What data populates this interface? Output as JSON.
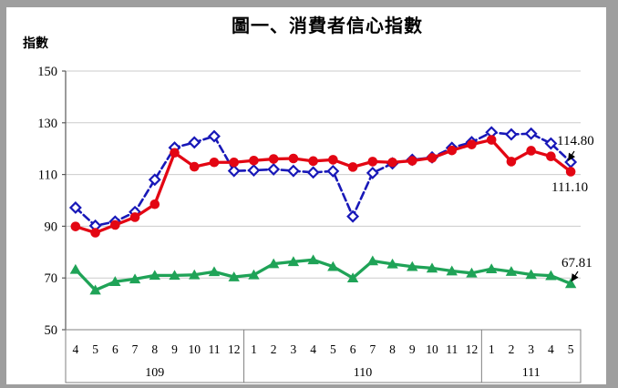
{
  "window": {
    "title": "圖一、消費者信心指數",
    "y_axis_unit": "指數"
  },
  "chart_data": {
    "type": "line",
    "title": "圖一、消費者信心指數",
    "ylabel": "指數",
    "xlabel": "",
    "ylim": [
      50,
      150
    ],
    "yticks": [
      150,
      130,
      110,
      90,
      70,
      50
    ],
    "grid": "horizontal",
    "legend": "none",
    "x_groups": [
      {
        "year": "109",
        "months": [
          "4",
          "5",
          "6",
          "7",
          "8",
          "9",
          "10",
          "11",
          "12"
        ]
      },
      {
        "year": "110",
        "months": [
          "1",
          "2",
          "3",
          "4",
          "5",
          "6",
          "7",
          "8",
          "9",
          "10",
          "11",
          "12"
        ]
      },
      {
        "year": "111",
        "months": [
          "1",
          "2",
          "3",
          "4",
          "5"
        ]
      }
    ],
    "series": [
      {
        "name": "blue-dashed-diamond",
        "color": "#1818b8",
        "line_style": "dashed",
        "marker": "diamond-open",
        "values": [
          97.2,
          90.2,
          91.8,
          95.5,
          108.0,
          120.4,
          122.4,
          124.8,
          111.4,
          111.6,
          112.0,
          111.4,
          110.8,
          111.3,
          93.8,
          110.6,
          114.3,
          115.7,
          116.6,
          120.3,
          122.5,
          126.3,
          125.5,
          125.8,
          122.0,
          114.8
        ]
      },
      {
        "name": "red-solid-circle",
        "color": "#e30613",
        "line_style": "solid",
        "marker": "circle",
        "values": [
          89.9,
          87.5,
          90.5,
          93.5,
          98.5,
          118.4,
          113.0,
          114.7,
          114.7,
          115.4,
          116.0,
          116.2,
          115.2,
          115.7,
          112.9,
          115.0,
          114.7,
          115.3,
          116.4,
          119.3,
          121.6,
          123.4,
          115.0,
          119.2,
          117.0,
          111.1
        ]
      },
      {
        "name": "green-solid-triangle",
        "color": "#1fa357",
        "line_style": "solid",
        "marker": "triangle",
        "values": [
          73.3,
          65.3,
          68.6,
          69.6,
          71.0,
          71.0,
          71.2,
          72.4,
          70.4,
          71.2,
          75.5,
          76.3,
          77.0,
          74.4,
          70.0,
          76.6,
          75.4,
          74.4,
          73.8,
          72.7,
          71.9,
          73.5,
          72.5,
          71.3,
          70.9,
          67.81
        ]
      }
    ],
    "annotations": [
      {
        "text": "114.80",
        "series": "blue-dashed-diamond",
        "point": "111/5"
      },
      {
        "text": "111.10",
        "series": "red-solid-circle",
        "point": "111/5"
      },
      {
        "text": "67.81",
        "series": "green-solid-triangle",
        "point": "111/5"
      }
    ]
  },
  "colors": {
    "grid": "#cbcbcb",
    "axis": "#595959",
    "table_border": "#808080",
    "frame": "#9e9e9e",
    "text": "#000000"
  }
}
